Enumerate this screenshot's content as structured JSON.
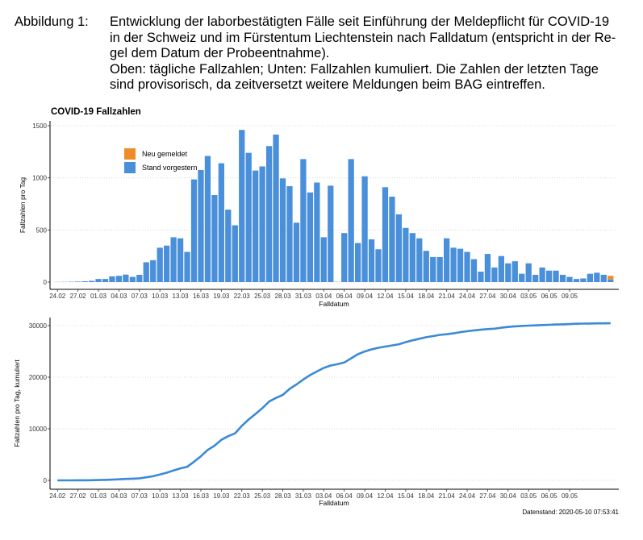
{
  "figure": {
    "label": "Abbildung 1:",
    "lines": [
      "Entwicklung der laborbestätigten Fälle seit Einführung der Meldepflicht für COVID-19",
      "in der Schweiz und im Fürstentum Liechtenstein nach Falldatum (entspricht in der Re-",
      "gel dem Datum der Probeentnahme).",
      "Oben: tägliche Fallzahlen; Unten: Fallzahlen kumuliert. Die Zahlen der letzten Tage",
      "sind provisorisch, da zeitversetzt weitere Meldungen beim BAG eintreffen."
    ]
  },
  "datenstand": "Datenstand: 2020-05-10 07:53:41",
  "colors": {
    "stand": "#4a8fd9",
    "neu": "#f08c28",
    "line": "#3a8ad6"
  },
  "chart_data": [
    {
      "type": "bar",
      "title": "COVID-19 Fallzahlen",
      "xlabel": "Falldatum",
      "ylabel": "Fallzahlen pro Tag",
      "ylim": [
        0,
        1550
      ],
      "yticks": [
        0,
        500,
        1000,
        1500
      ],
      "ytick_labels": [
        "0",
        "500",
        "1000",
        "1500"
      ],
      "xtick_labels": [
        "24.02",
        "27.02",
        "01.03",
        "04.03",
        "07.03",
        "10.03",
        "13.03",
        "16.03",
        "19.03",
        "22.03",
        "25.03",
        "28.03",
        "31.03",
        "03.04",
        "06.04",
        "09.04",
        "12.04",
        "15.04",
        "18.04",
        "21.04",
        "24.04",
        "27.04",
        "30.04",
        "03.05",
        "06.05",
        "09.05"
      ],
      "legend": {
        "position": "top-left",
        "entries": [
          "Neu gemeldet",
          "Stand vorgestern"
        ]
      },
      "series": [
        {
          "name": "Stand vorgestern",
          "values": [
            1,
            2,
            3,
            5,
            8,
            12,
            30,
            30,
            55,
            60,
            72,
            50,
            70,
            190,
            210,
            330,
            350,
            430,
            420,
            290,
            985,
            1075,
            1210,
            835,
            1140,
            695,
            545,
            1460,
            1240,
            1070,
            1110,
            1305,
            1415,
            995,
            920,
            570,
            1180,
            860,
            955,
            430,
            925,
            2,
            470,
            1180,
            375,
            1015,
            410,
            315,
            910,
            820,
            650,
            520,
            470,
            420,
            300,
            240,
            240,
            420,
            330,
            320,
            290,
            220,
            100,
            270,
            140,
            250,
            180,
            200,
            80,
            180,
            70,
            140,
            110,
            110,
            70,
            50,
            30,
            35,
            80,
            90,
            70,
            25
          ]
        },
        {
          "name": "Neu gemeldet",
          "values": [
            0,
            0,
            0,
            0,
            0,
            0,
            0,
            0,
            0,
            0,
            0,
            0,
            0,
            0,
            0,
            0,
            0,
            0,
            0,
            0,
            0,
            0,
            0,
            0,
            0,
            0,
            0,
            0,
            0,
            0,
            0,
            0,
            0,
            0,
            0,
            0,
            0,
            0,
            0,
            0,
            0,
            0,
            0,
            0,
            0,
            0,
            0,
            0,
            0,
            0,
            0,
            0,
            0,
            0,
            0,
            0,
            0,
            0,
            0,
            0,
            0,
            0,
            0,
            0,
            0,
            0,
            0,
            0,
            0,
            0,
            0,
            0,
            0,
            0,
            0,
            0,
            0,
            0,
            0,
            0,
            0,
            35
          ]
        }
      ]
    },
    {
      "type": "line",
      "xlabel": "Falldatum",
      "ylabel": "Fallzahlen pro Tag, kumuliert",
      "ylim": [
        -500,
        31500
      ],
      "yticks": [
        0,
        10000,
        20000,
        30000
      ],
      "ytick_labels": [
        "0",
        "10000",
        "20000",
        "30000"
      ],
      "xtick_labels": [
        "24.02",
        "27.02",
        "01.03",
        "04.03",
        "07.03",
        "10.03",
        "13.03",
        "16.03",
        "19.03",
        "22.03",
        "25.03",
        "28.03",
        "31.03",
        "03.04",
        "06.04",
        "09.04",
        "12.04",
        "15.04",
        "18.04",
        "21.04",
        "24.04",
        "27.04",
        "30.04",
        "03.05",
        "06.05",
        "09.05"
      ],
      "series": [
        {
          "name": "kumuliert",
          "values": [
            1,
            3,
            6,
            11,
            19,
            31,
            61,
            91,
            146,
            206,
            278,
            328,
            398,
            588,
            798,
            1128,
            1478,
            1908,
            2328,
            2618,
            3603,
            4678,
            5888,
            6723,
            7863,
            8558,
            9103,
            10563,
            11803,
            12873,
            13983,
            15288,
            15988,
            16558,
            17738,
            18598,
            19553,
            20403,
            21103,
            21793,
            22268,
            22518,
            22838,
            23658,
            24458,
            24978,
            25388,
            25703,
            25943,
            26153,
            26383,
            26803,
            27133,
            27453,
            27743,
            27963,
            28203,
            28323,
            28493,
            28733,
            28913,
            29073,
            29203,
            29333,
            29413,
            29593,
            29733,
            29853,
            29933,
            30003,
            30053,
            30103,
            30153,
            30213,
            30253,
            30303,
            30353,
            30383,
            30403,
            30433,
            30443,
            30453
          ]
        }
      ]
    }
  ]
}
